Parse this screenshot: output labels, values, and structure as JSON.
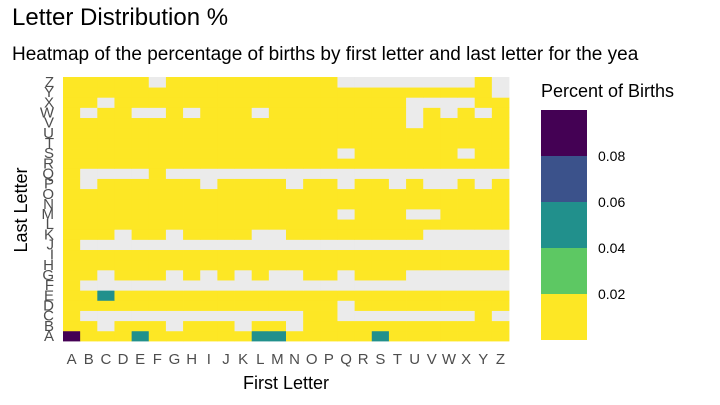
{
  "chart_data": {
    "type": "heatmap",
    "title": "Letter Distribution %",
    "subtitle": "Heatmap of the percentage of births by first letter and last letter for the yea",
    "xlabel": "First Letter",
    "ylabel": "Last Letter",
    "x_categories": [
      "A",
      "B",
      "C",
      "D",
      "E",
      "F",
      "G",
      "H",
      "I",
      "J",
      "K",
      "L",
      "M",
      "N",
      "O",
      "P",
      "Q",
      "R",
      "S",
      "T",
      "U",
      "V",
      "W",
      "X",
      "Y",
      "Z"
    ],
    "y_categories": [
      "A",
      "B",
      "C",
      "D",
      "E",
      "F",
      "G",
      "H",
      "I",
      "J",
      "K",
      "L",
      "M",
      "N",
      "O",
      "P",
      "Q",
      "R",
      "S",
      "T",
      "U",
      "V",
      "W",
      "X",
      "Y",
      "Z"
    ],
    "missing_color": "#ebebeb",
    "legend": {
      "title": "Percent of Births",
      "labels": [
        "0.08",
        "0.06",
        "0.04",
        "0.02"
      ],
      "bins": [
        {
          "color": "#440154"
        },
        {
          "color": "#3b528b"
        },
        {
          "color": "#21908c"
        },
        {
          "color": "#5dc863"
        },
        {
          "color": "#fde725"
        }
      ],
      "placement": "right"
    },
    "rows": {
      "A": [
        "0.10",
        "0.01",
        "0.01",
        "0.01",
        "0.04",
        "0.01",
        "0.01",
        "0.01",
        "0.01",
        "0.01",
        "0.01",
        "0.04",
        "0.04",
        "0.01",
        "0.01",
        "0.01",
        "0.01",
        "0.01",
        "0.04",
        "0.01",
        "0.01",
        "0.01",
        "0.01",
        "0.01",
        "0.01",
        "0.01"
      ],
      "B": [
        "0.01",
        "0.01",
        null,
        "0.01",
        "0.01",
        "0.01",
        null,
        "0.01",
        "0.01",
        "0.01",
        null,
        "0.01",
        "0.01",
        null,
        "0.01",
        "0.01",
        "0.01",
        "0.01",
        "0.01",
        "0.01",
        "0.01",
        "0.01",
        "0.01",
        "0.01",
        "0.01",
        "0.01"
      ],
      "C": [
        "0.01",
        null,
        null,
        null,
        null,
        null,
        null,
        null,
        null,
        null,
        null,
        null,
        null,
        null,
        "0.01",
        "0.01",
        null,
        null,
        null,
        null,
        null,
        null,
        null,
        null,
        "0.01",
        null
      ],
      "D": [
        "0.01",
        "0.01",
        "0.01",
        "0.01",
        "0.01",
        "0.01",
        "0.01",
        "0.01",
        "0.01",
        "0.01",
        "0.01",
        "0.01",
        "0.01",
        "0.01",
        "0.01",
        "0.01",
        null,
        "0.01",
        "0.01",
        "0.01",
        "0.01",
        "0.01",
        "0.01",
        "0.01",
        "0.01",
        "0.01"
      ],
      "E": [
        "0.01",
        "0.01",
        "0.04",
        "0.01",
        "0.01",
        "0.01",
        "0.01",
        "0.01",
        "0.01",
        "0.01",
        "0.01",
        "0.01",
        "0.01",
        "0.01",
        "0.01",
        "0.01",
        "0.01",
        "0.01",
        "0.01",
        "0.01",
        "0.01",
        "0.01",
        "0.01",
        "0.01",
        "0.01",
        "0.01"
      ],
      "F": [
        "0.01",
        null,
        null,
        null,
        null,
        null,
        null,
        null,
        null,
        null,
        null,
        null,
        null,
        null,
        null,
        null,
        null,
        null,
        null,
        null,
        null,
        null,
        null,
        null,
        null,
        null
      ],
      "G": [
        "0.01",
        "0.01",
        null,
        "0.01",
        "0.01",
        "0.01",
        null,
        "0.01",
        null,
        "0.01",
        null,
        "0.01",
        null,
        null,
        "0.01",
        "0.01",
        null,
        "0.01",
        "0.01",
        "0.01",
        null,
        null,
        null,
        null,
        null,
        null
      ],
      "H": [
        "0.01",
        "0.01",
        "0.01",
        "0.01",
        "0.01",
        "0.01",
        "0.01",
        "0.01",
        "0.01",
        "0.01",
        "0.01",
        "0.01",
        "0.01",
        "0.01",
        "0.01",
        "0.01",
        "0.01",
        "0.01",
        "0.01",
        "0.01",
        "0.01",
        "0.01",
        "0.01",
        "0.01",
        "0.01",
        "0.01"
      ],
      "I": [
        "0.01",
        "0.01",
        "0.01",
        "0.01",
        "0.01",
        "0.01",
        "0.01",
        "0.01",
        "0.01",
        "0.01",
        "0.01",
        "0.01",
        "0.01",
        "0.01",
        "0.01",
        "0.01",
        "0.01",
        "0.01",
        "0.01",
        "0.01",
        "0.01",
        "0.01",
        "0.01",
        "0.01",
        "0.01",
        "0.01"
      ],
      "J": [
        "0.01",
        null,
        null,
        null,
        null,
        null,
        null,
        null,
        null,
        null,
        null,
        null,
        null,
        null,
        null,
        null,
        null,
        null,
        null,
        null,
        null,
        null,
        null,
        null,
        null,
        null
      ],
      "K": [
        "0.01",
        "0.01",
        "0.01",
        null,
        "0.01",
        "0.01",
        null,
        "0.01",
        "0.01",
        "0.01",
        "0.01",
        null,
        null,
        "0.01",
        "0.01",
        "0.01",
        "0.01",
        "0.01",
        "0.01",
        "0.01",
        "0.01",
        null,
        null,
        null,
        null,
        null
      ],
      "L": [
        "0.01",
        "0.01",
        "0.01",
        "0.01",
        "0.01",
        "0.01",
        "0.01",
        "0.01",
        "0.01",
        "0.01",
        "0.01",
        "0.01",
        "0.01",
        "0.01",
        "0.01",
        "0.01",
        "0.01",
        "0.01",
        "0.01",
        "0.01",
        "0.01",
        "0.01",
        "0.01",
        "0.01",
        "0.01",
        "0.01"
      ],
      "M": [
        "0.01",
        "0.01",
        "0.01",
        "0.01",
        "0.01",
        "0.01",
        "0.01",
        "0.01",
        "0.01",
        "0.01",
        "0.01",
        "0.01",
        "0.01",
        "0.01",
        "0.01",
        "0.01",
        null,
        "0.01",
        "0.01",
        "0.01",
        null,
        null,
        "0.01",
        "0.01",
        "0.01",
        "0.01"
      ],
      "N": [
        "0.01",
        "0.01",
        "0.01",
        "0.01",
        "0.01",
        "0.01",
        "0.01",
        "0.01",
        "0.01",
        "0.01",
        "0.01",
        "0.01",
        "0.01",
        "0.01",
        "0.01",
        "0.01",
        "0.01",
        "0.01",
        "0.01",
        "0.01",
        "0.01",
        "0.01",
        "0.01",
        "0.01",
        "0.01",
        "0.01"
      ],
      "O": [
        "0.01",
        "0.01",
        "0.01",
        "0.01",
        "0.01",
        "0.01",
        "0.01",
        "0.01",
        "0.01",
        "0.01",
        "0.01",
        "0.01",
        "0.01",
        "0.01",
        "0.01",
        "0.01",
        "0.01",
        "0.01",
        "0.01",
        "0.01",
        "0.01",
        "0.01",
        "0.01",
        "0.01",
        "0.01",
        "0.01"
      ],
      "P": [
        "0.01",
        null,
        "0.01",
        "0.01",
        "0.01",
        "0.01",
        "0.01",
        "0.01",
        null,
        "0.01",
        "0.01",
        "0.01",
        "0.01",
        null,
        "0.01",
        "0.01",
        null,
        "0.01",
        "0.01",
        null,
        "0.01",
        null,
        null,
        "0.01",
        null,
        "0.01"
      ],
      "Q": [
        "0.01",
        null,
        null,
        null,
        null,
        "0.01",
        null,
        null,
        null,
        null,
        null,
        null,
        null,
        null,
        null,
        null,
        null,
        null,
        null,
        null,
        null,
        null,
        null,
        null,
        null,
        null
      ],
      "R": [
        "0.01",
        "0.01",
        "0.01",
        "0.01",
        "0.01",
        "0.01",
        "0.01",
        "0.01",
        "0.01",
        "0.01",
        "0.01",
        "0.01",
        "0.01",
        "0.01",
        "0.01",
        "0.01",
        "0.01",
        "0.01",
        "0.01",
        "0.01",
        "0.01",
        "0.01",
        "0.01",
        "0.01",
        "0.01",
        "0.01"
      ],
      "S": [
        "0.01",
        "0.01",
        "0.01",
        "0.01",
        "0.01",
        "0.01",
        "0.01",
        "0.01",
        "0.01",
        "0.01",
        "0.01",
        "0.01",
        "0.01",
        "0.01",
        "0.01",
        "0.01",
        null,
        "0.01",
        "0.01",
        "0.01",
        "0.01",
        "0.01",
        "0.01",
        null,
        "0.01",
        "0.01"
      ],
      "T": [
        "0.01",
        "0.01",
        "0.01",
        "0.01",
        "0.01",
        "0.01",
        "0.01",
        "0.01",
        "0.01",
        "0.01",
        "0.01",
        "0.01",
        "0.01",
        "0.01",
        "0.01",
        "0.01",
        "0.01",
        "0.01",
        "0.01",
        "0.01",
        "0.01",
        "0.01",
        "0.01",
        "0.01",
        "0.01",
        "0.01"
      ],
      "U": [
        "0.01",
        "0.01",
        "0.01",
        "0.01",
        "0.01",
        "0.01",
        "0.01",
        "0.01",
        "0.01",
        "0.01",
        "0.01",
        "0.01",
        "0.01",
        "0.01",
        "0.01",
        "0.01",
        "0.01",
        "0.01",
        "0.01",
        "0.01",
        "0.01",
        "0.01",
        "0.01",
        "0.01",
        "0.01",
        "0.01"
      ],
      "V": [
        "0.01",
        "0.01",
        "0.01",
        "0.01",
        "0.01",
        "0.01",
        "0.01",
        "0.01",
        "0.01",
        "0.01",
        "0.01",
        "0.01",
        "0.01",
        "0.01",
        "0.01",
        "0.01",
        "0.01",
        "0.01",
        "0.01",
        "0.01",
        null,
        "0.01",
        "0.01",
        "0.01",
        "0.01",
        "0.01"
      ],
      "W": [
        "0.01",
        null,
        "0.01",
        "0.01",
        null,
        null,
        "0.01",
        null,
        "0.01",
        "0.01",
        "0.01",
        null,
        "0.01",
        "0.01",
        "0.01",
        "0.01",
        "0.01",
        "0.01",
        "0.01",
        "0.01",
        null,
        "0.01",
        null,
        "0.01",
        null,
        "0.01"
      ],
      "X": [
        "0.01",
        "0.01",
        null,
        "0.01",
        "0.01",
        "0.01",
        "0.01",
        "0.01",
        "0.01",
        "0.01",
        "0.01",
        "0.01",
        "0.01",
        "0.01",
        "0.01",
        "0.01",
        "0.01",
        "0.01",
        "0.01",
        "0.01",
        null,
        null,
        null,
        null,
        "0.01",
        "0.01"
      ],
      "Y": [
        "0.01",
        "0.01",
        "0.01",
        "0.01",
        "0.01",
        "0.01",
        "0.01",
        "0.01",
        "0.01",
        "0.01",
        "0.01",
        "0.01",
        "0.01",
        "0.01",
        "0.01",
        "0.01",
        "0.01",
        "0.01",
        "0.01",
        "0.01",
        "0.01",
        "0.01",
        "0.01",
        "0.01",
        "0.01",
        null
      ],
      "Z": [
        "0.01",
        "0.01",
        "0.01",
        "0.01",
        "0.01",
        null,
        "0.01",
        "0.01",
        "0.01",
        "0.01",
        "0.01",
        "0.01",
        "0.01",
        "0.01",
        "0.01",
        "0.01",
        null,
        null,
        null,
        null,
        null,
        null,
        null,
        null,
        "0.01",
        null
      ]
    }
  }
}
